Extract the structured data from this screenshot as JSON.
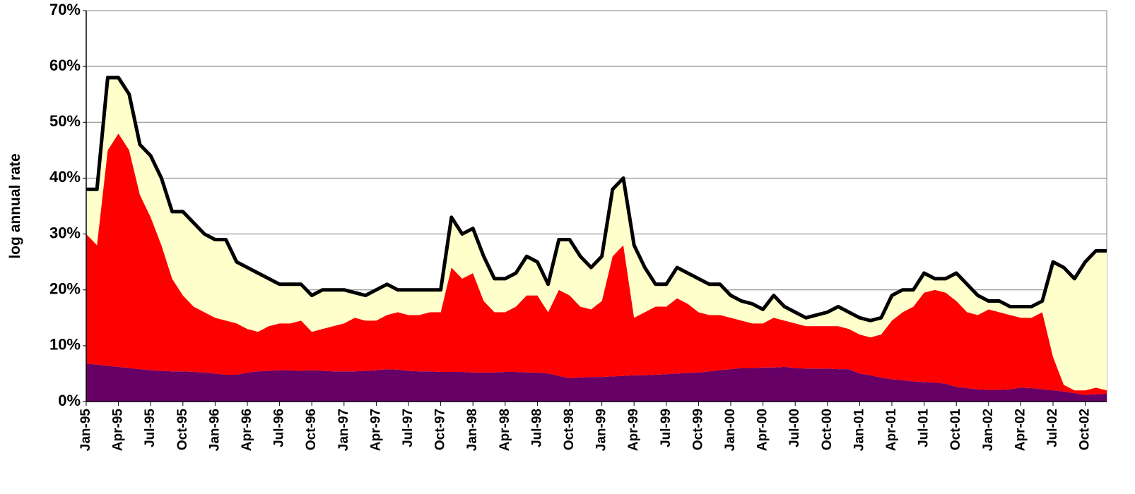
{
  "chart_data": {
    "type": "stacked-area-line",
    "y_label": "log annual rate",
    "categories": [
      "Jan-95",
      null,
      null,
      "Apr-95",
      null,
      null,
      "Jul-95",
      null,
      null,
      "Oct-95",
      null,
      null,
      "Jan-96",
      null,
      null,
      "Apr-96",
      null,
      null,
      "Jul-96",
      null,
      null,
      "Oct-96",
      null,
      null,
      "Jan-97",
      null,
      null,
      "Apr-97",
      null,
      null,
      "Jul-97",
      null,
      null,
      "Oct-97",
      null,
      null,
      "Jan-98",
      null,
      null,
      "Apr-98",
      null,
      null,
      "Jul-98",
      null,
      null,
      "Oct-98",
      null,
      null,
      "Jan-99",
      null,
      null,
      "Apr-99",
      null,
      null,
      "Jul-99",
      null,
      null,
      "Oct-99",
      null,
      null,
      "Jan-00",
      null,
      null,
      "Apr-00",
      null,
      null,
      "Jul-00",
      null,
      null,
      "Oct-00",
      null,
      null,
      "Jan-01",
      null,
      null,
      "Apr-01",
      null,
      null,
      "Jul-01",
      null,
      null,
      "Oct-01",
      null,
      null,
      "Jan-02",
      null,
      null,
      "Apr-02",
      null,
      null,
      "Jul-02",
      null,
      null,
      "Oct-02",
      null,
      null
    ],
    "series": [
      {
        "kind": "area",
        "color": "#660066",
        "values": [
          6.8,
          6.6,
          6.4,
          6.2,
          6.0,
          5.8,
          5.6,
          5.5,
          5.4,
          5.4,
          5.3,
          5.2,
          5.0,
          4.8,
          4.8,
          5.2,
          5.4,
          5.5,
          5.6,
          5.6,
          5.5,
          5.6,
          5.5,
          5.4,
          5.4,
          5.4,
          5.5,
          5.6,
          5.8,
          5.7,
          5.5,
          5.4,
          5.4,
          5.3,
          5.3,
          5.3,
          5.2,
          5.2,
          5.2,
          5.3,
          5.3,
          5.2,
          5.2,
          5.0,
          4.6,
          4.2,
          4.3,
          4.4,
          4.4,
          4.5,
          4.6,
          4.7,
          4.7,
          4.8,
          4.9,
          5.0,
          5.1,
          5.2,
          5.4,
          5.6,
          5.8,
          6.0,
          6.0,
          6.1,
          6.1,
          6.2,
          6.0,
          5.9,
          5.9,
          5.9,
          5.8,
          5.8,
          5.0,
          4.7,
          4.3,
          4.0,
          3.8,
          3.6,
          3.5,
          3.4,
          3.2,
          2.6,
          2.4,
          2.2,
          2.1,
          2.1,
          2.2,
          2.5,
          2.4,
          2.2,
          2.0,
          1.8,
          1.5,
          1.2,
          1.3,
          1.4
        ]
      },
      {
        "kind": "area",
        "color": "#ff0000",
        "values": [
          23.2,
          21.4,
          38.6,
          41.8,
          39.0,
          31.2,
          27.4,
          22.5,
          16.6,
          13.6,
          11.7,
          10.8,
          10.0,
          9.7,
          9.2,
          7.8,
          7.1,
          8.0,
          8.4,
          8.4,
          9.0,
          6.9,
          7.5,
          8.1,
          8.6,
          9.6,
          9.0,
          8.9,
          9.7,
          10.3,
          10.0,
          10.1,
          10.6,
          10.7,
          18.7,
          16.7,
          17.8,
          12.8,
          10.8,
          10.7,
          11.7,
          13.8,
          13.8,
          11.0,
          15.4,
          14.8,
          12.7,
          12.1,
          13.6,
          21.5,
          23.4,
          10.3,
          11.3,
          12.2,
          12.1,
          13.5,
          12.4,
          10.8,
          10.1,
          9.9,
          9.2,
          8.5,
          8.0,
          7.9,
          8.9,
          8.3,
          8.0,
          7.6,
          7.6,
          7.6,
          7.7,
          7.2,
          7.0,
          6.8,
          7.7,
          10.5,
          12.2,
          13.4,
          16.0,
          16.6,
          16.3,
          15.4,
          13.6,
          13.3,
          14.4,
          13.9,
          13.3,
          12.5,
          12.6,
          13.8,
          6.0,
          1.2,
          0.5,
          0.8,
          1.2,
          0.6
        ]
      },
      {
        "kind": "area",
        "color": "#ffffcc",
        "values": [
          8,
          10,
          13,
          10,
          10,
          9,
          11,
          12,
          12,
          15,
          15,
          14,
          14,
          14.5,
          11,
          11,
          10.5,
          8.5,
          7,
          7,
          6.5,
          6.5,
          7,
          6.5,
          6,
          4.5,
          4.5,
          5.5,
          5.5,
          4,
          4.5,
          4.5,
          4,
          4,
          9,
          8,
          8,
          8,
          6,
          6,
          6,
          7,
          6,
          5,
          9,
          10,
          9,
          7.5,
          8,
          12,
          12,
          13,
          8,
          4,
          4,
          5.5,
          5.5,
          6,
          5.5,
          5.5,
          4,
          3.5,
          3.5,
          2.5,
          4,
          2.5,
          2,
          1.5,
          2,
          2.5,
          3.5,
          3,
          3,
          3,
          3,
          4.5,
          4,
          3,
          3.5,
          2,
          2.5,
          5,
          5,
          3.5,
          1.5,
          2,
          1.5,
          2,
          2,
          2,
          17,
          21,
          20,
          23,
          24.5,
          25
        ]
      },
      {
        "kind": "line",
        "color": "#000000",
        "values": [
          38,
          38,
          58,
          58,
          55,
          46,
          44,
          40,
          34,
          34,
          32,
          30,
          29,
          29,
          25,
          24,
          23,
          22,
          21,
          21,
          21,
          19,
          20,
          20,
          20,
          19.5,
          19,
          20,
          21,
          20,
          20,
          20,
          20,
          20,
          33,
          30,
          31,
          26,
          22,
          22,
          23,
          26,
          25,
          21,
          29,
          29,
          26,
          24,
          26,
          38,
          40,
          28,
          24,
          21,
          21,
          24,
          23,
          22,
          21,
          21,
          19,
          18,
          17.5,
          16.5,
          19,
          17,
          16,
          15,
          15.5,
          16,
          17,
          16,
          15,
          14.5,
          15,
          19,
          20,
          20,
          23,
          22,
          22,
          23,
          21,
          19,
          18,
          18,
          17,
          17,
          17,
          18,
          25,
          24,
          22,
          25,
          27,
          27
        ]
      }
    ],
    "ylim": [
      0,
      70
    ],
    "yticks": [
      {
        "value": 0,
        "label": "0%"
      },
      {
        "value": 10,
        "label": "10%"
      },
      {
        "value": 20,
        "label": "20%"
      },
      {
        "value": 30,
        "label": "30%"
      },
      {
        "value": 40,
        "label": "40%"
      },
      {
        "value": 50,
        "label": "50%"
      },
      {
        "value": 60,
        "label": "60%"
      },
      {
        "value": 70,
        "label": "70%"
      }
    ],
    "grid": true
  }
}
